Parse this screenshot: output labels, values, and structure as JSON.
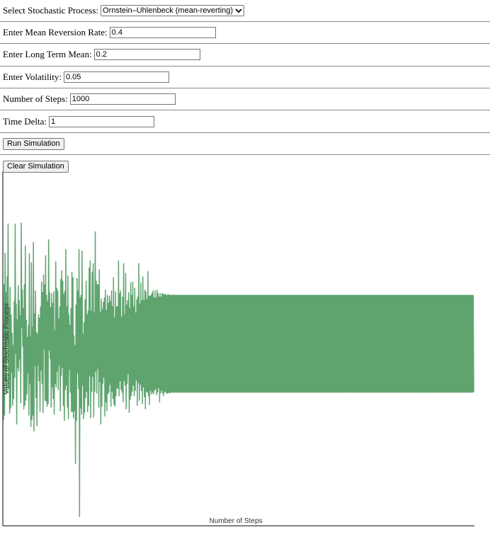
{
  "controls": {
    "process_label": "Select Stochastic Process:",
    "process_value": "Ornstein–Uhlenbeck (mean-reverting)",
    "mean_reversion_label": "Enter Mean Reversion Rate:",
    "mean_reversion_value": "0.4",
    "long_term_mean_label": "Enter Long Term Mean:",
    "long_term_mean_value": "0.2",
    "volatility_label": "Enter Volatility:",
    "volatility_value": "0.05",
    "steps_label": "Number of Steps:",
    "steps_value": "1000",
    "time_delta_label": "Time Delta:",
    "time_delta_value": "1",
    "run_label": "Run Simulation",
    "clear_label": "Clear Simulation"
  },
  "colors": {
    "line": "#5fa46f",
    "axis": "#000000"
  },
  "chart_data": {
    "type": "line",
    "title": "",
    "xlabel": "Number of Steps",
    "ylabel": "Values of Stochastic Process",
    "grid": false,
    "xlim": [
      0,
      1000
    ],
    "ylim": [
      0.0,
      0.4
    ],
    "series": [
      {
        "values": [
          0.118,
          0.272,
          0.124,
          0.308,
          0.163,
          0.263,
          0.148,
          0.281,
          0.21,
          0.341,
          0.155,
          0.246,
          0.126,
          0.269,
          0.132,
          0.238,
          0.173,
          0.217,
          0.135,
          0.203,
          0.143,
          0.253,
          0.167,
          0.341,
          0.194,
          0.25,
          0.114,
          0.232,
          0.178,
          0.271,
          0.174,
          0.254,
          0.188,
          0.237,
          0.138,
          0.342,
          0.224,
          0.266,
          0.202,
          0.245,
          0.131,
          0.272,
          0.135,
          0.316,
          0.141,
          0.232,
          0.148,
          0.212,
          0.172,
          0.226,
          0.124,
          0.307,
          0.16,
          0.213,
          0.111,
          0.297,
          0.119,
          0.224,
          0.124,
          0.32,
          0.106,
          0.239,
          0.18,
          0.265,
          0.144,
          0.218,
          0.112,
          0.216,
          0.181,
          0.238,
          0.163,
          0.234,
          0.128,
          0.247,
          0.175,
          0.275,
          0.16,
          0.263,
          0.127,
          0.283,
          0.199,
          0.272,
          0.141,
          0.305,
          0.14,
          0.26,
          0.134,
          0.253,
          0.137,
          0.323,
          0.198,
          0.263,
          0.188,
          0.246,
          0.133,
          0.262,
          0.156,
          0.251,
          0.143,
          0.264,
          0.125,
          0.22,
          0.16,
          0.298,
          0.156,
          0.268,
          0.174,
          0.265,
          0.153,
          0.233,
          0.181,
          0.247,
          0.129,
          0.278,
          0.169,
          0.288,
          0.178,
          0.276,
          0.135,
          0.261,
          0.118,
          0.265,
          0.153,
          0.312,
          0.158,
          0.247,
          0.133,
          0.282,
          0.12,
          0.238,
          0.176,
          0.226,
          0.15,
          0.245,
          0.128,
          0.286,
          0.128,
          0.28,
          0.121,
          0.214,
          0.129,
          0.203,
          0.069,
          0.249,
          0.118,
          0.279,
          0.172,
          0.265,
          0.154,
          0.312,
          0.009,
          0.257,
          0.132,
          0.26,
          0.125,
          0.31,
          0.158,
          0.216,
          0.12,
          0.229,
          0.127,
          0.255,
          0.144,
          0.276,
          0.151,
          0.238,
          0.128,
          0.242,
          0.135,
          0.291,
          0.169,
          0.299,
          0.121,
          0.242,
          0.151,
          0.286,
          0.168,
          0.296,
          0.122,
          0.24,
          0.151,
          0.332,
          0.174,
          0.276,
          0.149,
          0.272,
          0.177,
          0.272,
          0.133,
          0.289,
          0.162,
          0.241,
          0.114,
          0.256,
          0.134,
          0.244,
          0.16,
          0.252,
          0.167,
          0.257,
          0.123,
          0.266,
          0.139,
          0.243,
          0.129,
          0.26,
          0.148,
          0.251,
          0.15,
          0.259,
          0.159,
          0.253,
          0.134,
          0.265,
          0.151,
          0.247,
          0.143,
          0.28,
          0.136,
          0.235,
          0.134,
          0.264,
          0.146,
          0.247,
          0.155,
          0.247,
          0.154,
          0.299,
          0.146,
          0.262,
          0.163,
          0.265,
          0.153,
          0.235,
          0.15,
          0.258,
          0.139,
          0.296,
          0.163,
          0.238,
          0.158,
          0.285,
          0.131,
          0.249,
          0.16,
          0.254,
          0.171,
          0.263,
          0.127,
          0.245,
          0.142,
          0.274,
          0.146,
          0.26,
          0.151,
          0.275,
          0.158,
          0.247,
          0.146,
          0.268,
          0.152,
          0.24,
          0.164,
          0.255,
          0.135,
          0.258,
          0.161,
          0.296,
          0.141,
          0.25,
          0.159,
          0.274,
          0.152,
          0.254,
          0.137,
          0.281,
          0.156,
          0.254,
          0.145,
          0.266,
          0.131,
          0.264,
          0.151,
          0.255,
          0.15,
          0.287,
          0.146,
          0.259,
          0.136,
          0.259,
          0.152,
          0.26,
          0.148,
          0.262,
          0.15,
          0.265,
          0.148,
          0.257,
          0.152,
          0.265,
          0.154,
          0.257,
          0.147,
          0.266,
          0.15,
          0.262,
          0.155,
          0.258,
          0.139,
          0.262,
          0.149,
          0.258,
          0.152,
          0.262,
          0.149,
          0.261,
          0.146,
          0.261,
          0.151,
          0.261,
          0.15,
          0.26,
          0.149,
          0.26,
          0.149,
          0.261,
          0.15,
          0.26,
          0.149,
          0.26,
          0.15,
          0.26,
          0.15,
          0.26,
          0.15,
          0.26,
          0.15,
          0.26,
          0.15,
          0.26,
          0.15,
          0.26,
          0.15,
          0.26,
          0.15,
          0.26,
          0.15,
          0.26,
          0.15,
          0.26,
          0.15,
          0.26,
          0.15,
          0.26,
          0.15,
          0.26,
          0.15,
          0.26,
          0.15,
          0.26,
          0.15,
          0.26,
          0.15,
          0.26,
          0.15,
          0.26,
          0.15,
          0.26,
          0.15,
          0.26,
          0.15,
          0.26,
          0.15,
          0.26,
          0.15,
          0.26,
          0.15,
          0.26,
          0.15,
          0.26,
          0.15,
          0.26,
          0.15,
          0.26,
          0.15,
          0.26,
          0.15,
          0.26,
          0.15,
          0.26,
          0.15,
          0.26,
          0.15,
          0.26,
          0.15,
          0.26,
          0.15,
          0.26,
          0.15,
          0.26,
          0.15,
          0.26,
          0.15,
          0.26,
          0.15,
          0.26,
          0.15,
          0.26,
          0.15,
          0.26,
          0.15,
          0.26,
          0.15,
          0.26,
          0.15,
          0.26,
          0.15,
          0.26,
          0.15,
          0.26,
          0.15,
          0.26,
          0.15,
          0.26,
          0.15,
          0.26,
          0.15,
          0.26,
          0.15,
          0.26,
          0.15,
          0.26,
          0.15,
          0.26,
          0.15,
          0.26,
          0.15,
          0.26,
          0.15,
          0.26,
          0.15,
          0.26,
          0.15,
          0.26,
          0.15,
          0.26,
          0.15,
          0.26,
          0.15,
          0.26,
          0.15,
          0.26,
          0.15,
          0.26,
          0.15,
          0.26,
          0.15,
          0.26,
          0.15,
          0.26,
          0.15,
          0.26,
          0.15,
          0.26,
          0.15,
          0.26,
          0.15,
          0.26,
          0.15,
          0.26,
          0.15,
          0.26,
          0.15,
          0.26,
          0.15,
          0.26,
          0.15,
          0.26,
          0.15,
          0.26,
          0.15,
          0.26,
          0.15,
          0.26,
          0.15,
          0.26,
          0.15,
          0.26,
          0.15,
          0.26,
          0.15,
          0.26,
          0.15,
          0.26,
          0.15,
          0.26,
          0.15,
          0.26,
          0.15,
          0.26,
          0.15,
          0.26,
          0.15,
          0.26,
          0.15,
          0.26,
          0.15,
          0.26,
          0.15,
          0.26,
          0.15,
          0.26,
          0.15,
          0.26,
          0.15,
          0.26,
          0.15,
          0.26,
          0.15,
          0.26,
          0.15,
          0.26,
          0.15,
          0.26,
          0.15,
          0.26,
          0.15,
          0.26,
          0.15,
          0.26,
          0.15,
          0.26,
          0.15,
          0.26,
          0.15,
          0.26,
          0.15,
          0.26,
          0.15,
          0.26,
          0.15,
          0.26,
          0.15,
          0.26,
          0.15,
          0.26,
          0.15,
          0.26,
          0.15,
          0.26,
          0.15,
          0.26,
          0.15,
          0.26,
          0.15,
          0.26,
          0.15,
          0.26,
          0.15,
          0.26,
          0.15,
          0.26,
          0.15,
          0.26,
          0.15,
          0.26,
          0.15,
          0.26,
          0.15,
          0.26,
          0.15,
          0.26,
          0.15,
          0.26,
          0.15,
          0.26,
          0.15,
          0.26,
          0.15,
          0.26,
          0.15,
          0.26,
          0.15,
          0.26,
          0.15,
          0.26,
          0.15,
          0.26,
          0.15,
          0.26,
          0.15,
          0.26,
          0.15,
          0.26,
          0.15,
          0.26,
          0.15,
          0.26,
          0.15,
          0.26,
          0.15,
          0.26,
          0.15,
          0.26,
          0.15,
          0.26,
          0.15,
          0.26,
          0.15,
          0.26,
          0.15,
          0.26,
          0.15,
          0.26,
          0.15,
          0.26,
          0.15,
          0.26,
          0.15,
          0.26,
          0.15,
          0.26,
          0.15,
          0.26,
          0.15,
          0.26,
          0.15,
          0.26,
          0.15,
          0.26,
          0.15,
          0.26,
          0.15,
          0.26,
          0.15,
          0.26,
          0.15,
          0.26,
          0.15,
          0.26,
          0.15,
          0.26,
          0.15,
          0.26,
          0.15,
          0.26,
          0.15,
          0.26,
          0.15,
          0.26,
          0.15,
          0.26,
          0.15,
          0.26,
          0.15,
          0.26,
          0.15,
          0.26,
          0.15,
          0.26,
          0.15,
          0.26,
          0.15,
          0.26,
          0.15,
          0.26,
          0.15,
          0.26,
          0.15,
          0.26,
          0.15,
          0.26,
          0.15,
          0.26,
          0.15,
          0.26,
          0.15,
          0.26,
          0.15,
          0.26,
          0.15,
          0.26,
          0.15,
          0.26,
          0.15,
          0.26,
          0.15,
          0.26,
          0.15,
          0.26,
          0.15,
          0.26,
          0.15,
          0.26,
          0.15,
          0.26,
          0.15,
          0.26,
          0.15,
          0.26,
          0.15,
          0.26,
          0.15,
          0.26,
          0.15,
          0.26,
          0.15,
          0.26,
          0.15,
          0.26,
          0.15,
          0.26,
          0.15,
          0.26,
          0.15,
          0.26,
          0.15,
          0.26,
          0.15,
          0.26,
          0.15,
          0.26,
          0.15,
          0.26,
          0.15,
          0.26,
          0.15,
          0.26,
          0.15,
          0.26,
          0.15,
          0.26,
          0.15,
          0.26,
          0.15,
          0.26,
          0.15,
          0.26,
          0.15,
          0.26,
          0.15,
          0.26,
          0.15,
          0.26,
          0.15,
          0.26,
          0.15,
          0.26,
          0.15,
          0.26,
          0.15,
          0.26,
          0.15,
          0.26,
          0.15,
          0.26,
          0.15,
          0.26,
          0.15,
          0.26,
          0.15,
          0.26,
          0.15,
          0.26,
          0.15,
          0.26,
          0.15,
          0.26,
          0.15,
          0.26,
          0.15,
          0.26,
          0.15,
          0.26,
          0.15,
          0.26,
          0.15,
          0.26,
          0.15,
          0.26,
          0.15,
          0.26,
          0.15,
          0.26,
          0.15,
          0.26,
          0.15,
          0.26,
          0.15,
          0.26,
          0.15,
          0.26,
          0.15,
          0.26,
          0.15,
          0.26,
          0.15,
          0.26,
          0.15,
          0.26,
          0.15,
          0.26,
          0.15,
          0.26,
          0.15,
          0.26,
          0.15,
          0.26,
          0.15,
          0.26,
          0.15,
          0.26,
          0.15,
          0.26,
          0.15,
          0.26,
          0.15,
          0.26,
          0.15,
          0.26,
          0.15,
          0.26,
          0.15,
          0.26,
          0.15,
          0.26,
          0.15,
          0.26,
          0.15,
          0.26,
          0.15,
          0.26,
          0.15,
          0.26,
          0.15,
          0.26,
          0.15,
          0.26,
          0.15,
          0.26,
          0.15,
          0.26,
          0.15,
          0.26,
          0.15,
          0.26,
          0.15,
          0.26,
          0.15,
          0.26,
          0.15,
          0.26,
          0.15,
          0.26,
          0.15,
          0.26,
          0.15,
          0.26,
          0.15,
          0.26,
          0.15,
          0.26,
          0.15,
          0.26,
          0.15,
          0.26,
          0.15,
          0.26,
          0.15,
          0.26,
          0.15,
          0.26,
          0.15,
          0.26,
          0.15,
          0.26,
          0.15,
          0.26,
          0.15,
          0.26,
          0.15,
          0.26,
          0.15,
          0.26,
          0.15,
          0.26,
          0.15,
          0.26,
          0.15,
          0.26,
          0.15,
          0.26,
          0.15,
          0.26,
          0.15,
          0.26,
          0.15,
          0.26,
          0.15,
          0.26,
          0.15,
          0.26,
          0.15,
          0.26,
          0.15,
          0.26,
          0.15,
          0.26,
          0.15,
          0.26,
          0.15,
          0.26,
          0.15,
          0.26,
          0.15,
          0.26,
          0.15,
          0.26,
          0.15,
          0.26,
          0.15,
          0.26,
          0.15,
          0.26,
          0.15,
          0.26,
          0.15,
          0.26,
          0.15
        ]
      }
    ]
  }
}
